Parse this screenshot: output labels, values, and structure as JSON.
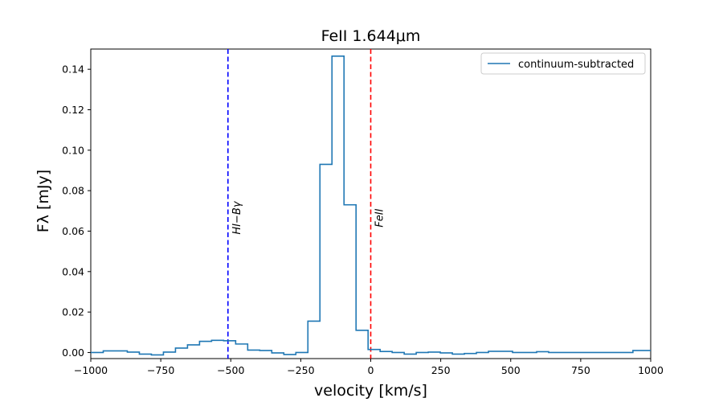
{
  "chart_data": {
    "type": "line",
    "drawstyle": "steps-mid",
    "title": "FeII 1.644μm",
    "xlabel": "velocity [km/s]",
    "ylabel": "Fλ [mJy]",
    "xlim": [
      -1000,
      1000
    ],
    "ylim": [
      -0.003,
      0.15
    ],
    "xticks": [
      -1000,
      -750,
      -500,
      -250,
      0,
      250,
      500,
      750,
      1000
    ],
    "xtick_labels": [
      "−1000",
      "−750",
      "−500",
      "−250",
      "0",
      "250",
      "500",
      "750",
      "1000"
    ],
    "yticks": [
      0.0,
      0.02,
      0.04,
      0.06,
      0.08,
      0.1,
      0.12,
      0.14
    ],
    "ytick_labels": [
      "0.00",
      "0.02",
      "0.04",
      "0.06",
      "0.08",
      "0.10",
      "0.12",
      "0.14"
    ],
    "grid": false,
    "legend_position": "upper-right",
    "series": [
      {
        "name": "continuum-subtracted",
        "color": "#1f77b4",
        "x": [
          -1020,
          -977,
          -934,
          -891,
          -848,
          -805,
          -762,
          -719,
          -676,
          -633,
          -590,
          -547,
          -504,
          -461,
          -418,
          -375,
          -332,
          -289,
          -246,
          -203,
          -160,
          -117,
          -74,
          -31,
          12,
          55,
          98,
          141,
          184,
          227,
          270,
          313,
          356,
          399,
          442,
          485,
          528,
          571,
          614,
          657,
          700,
          743,
          786,
          829,
          872,
          915,
          958,
          1001
        ],
        "y": [
          0.0,
          0.0,
          0.0008,
          0.0008,
          0.0002,
          -0.0008,
          -0.0012,
          0.0002,
          0.0022,
          0.0038,
          0.0055,
          0.006,
          0.0058,
          0.0042,
          0.0012,
          0.001,
          -0.0002,
          -0.001,
          0.0,
          0.0155,
          0.093,
          0.1465,
          0.073,
          0.011,
          0.0015,
          0.0005,
          0.0,
          -0.0008,
          0.0,
          0.0002,
          -0.0002,
          -0.0008,
          -0.0005,
          0.0,
          0.0006,
          0.0006,
          0.0,
          0.0,
          0.0004,
          0.0,
          0.0,
          0.0,
          0.0,
          0.0,
          0.0,
          0.0,
          0.001,
          0.001
        ]
      }
    ],
    "vlines": [
      {
        "x": -510,
        "color": "#0000ff",
        "linestyle": "dashed",
        "label": "HI−Bγ",
        "label_y": 0.0665
      },
      {
        "x": 0,
        "color": "#ff0000",
        "linestyle": "dashed",
        "label": "FeII",
        "label_y": 0.0665
      }
    ]
  }
}
